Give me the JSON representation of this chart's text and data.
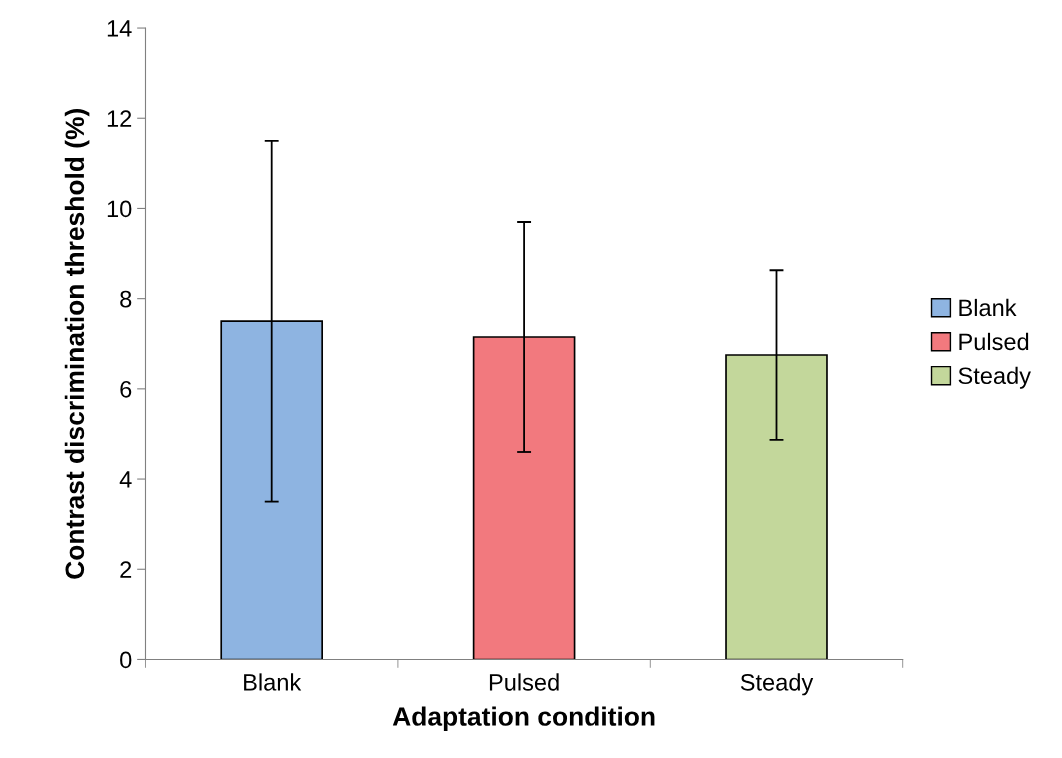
{
  "chart_data": {
    "type": "bar",
    "xlabel": "Adaptation condition",
    "ylabel": "Contrast discrimination threshold (%)",
    "categories": [
      "Blank",
      "Pulsed",
      "Steady"
    ],
    "series": [
      {
        "name": "Blank",
        "color": "#8eb4e1",
        "values": [
          7.5,
          null,
          null
        ],
        "errors": [
          4.0,
          null,
          null
        ]
      },
      {
        "name": "Pulsed",
        "color": "#f2797e",
        "values": [
          null,
          7.15,
          null
        ],
        "errors": [
          null,
          2.55,
          null
        ]
      },
      {
        "name": "Steady",
        "color": "#c3d79b",
        "values": [
          null,
          null,
          6.75
        ],
        "errors": [
          null,
          null,
          1.88
        ]
      }
    ],
    "ylim": [
      0,
      14
    ],
    "yticks": [
      0,
      2,
      4,
      6,
      8,
      10,
      12,
      14
    ],
    "grid": false,
    "legend": "right"
  }
}
